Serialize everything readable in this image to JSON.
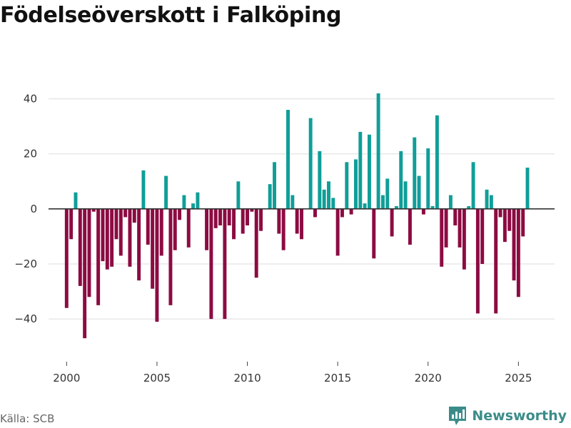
{
  "chart_data": {
    "type": "bar",
    "title": "Födelseöverskott i Falköping",
    "xlabel": "",
    "ylabel": "",
    "ylim": [
      -55,
      50
    ],
    "xlim": [
      1999.0,
      2027.0
    ],
    "yticks": [
      -40,
      -20,
      0,
      20,
      40
    ],
    "xticks": [
      2000,
      2005,
      2010,
      2015,
      2020,
      2025
    ],
    "ytick_labels": [
      "−40",
      "−20",
      "0",
      "20",
      "40"
    ],
    "xtick_labels": [
      "2000",
      "2005",
      "2010",
      "2015",
      "2020",
      "2025"
    ],
    "grid": true,
    "bar_period": "quarterly",
    "start_year": 2000,
    "values": [
      -36,
      -11,
      6,
      -28,
      -47,
      -32,
      -1,
      -35,
      -19,
      -22,
      -21,
      -11,
      -17,
      -3,
      -21,
      -5,
      -26,
      14,
      -13,
      -29,
      -41,
      -17,
      12,
      -35,
      -15,
      -4,
      5,
      -14,
      2,
      6,
      0,
      -15,
      -40,
      -7,
      -6,
      -40,
      -6,
      -11,
      10,
      -9,
      -6,
      -1,
      -25,
      -8,
      0,
      9,
      17,
      -9,
      -15,
      36,
      5,
      -9,
      -11,
      0,
      33,
      -3,
      21,
      7,
      10,
      4,
      -17,
      -3,
      17,
      -2,
      18,
      28,
      2,
      27,
      -18,
      42,
      5,
      11,
      -10,
      1,
      21,
      10,
      -13,
      26,
      12,
      -2,
      22,
      1,
      34,
      -21,
      -14,
      5,
      -6,
      -14,
      -22,
      1,
      17,
      -38,
      -20,
      7,
      5,
      -38,
      -3,
      -12,
      -8,
      -26,
      -32,
      -10,
      15
    ],
    "colors": {
      "positive": "#109e98",
      "negative": "#8c0b42",
      "zero_line": "#333333",
      "grid": "#dddddd"
    }
  },
  "footer": {
    "source": "Källa: SCB",
    "brand": "Newsworthy"
  },
  "colors": {
    "brand": "#3b8c89"
  }
}
